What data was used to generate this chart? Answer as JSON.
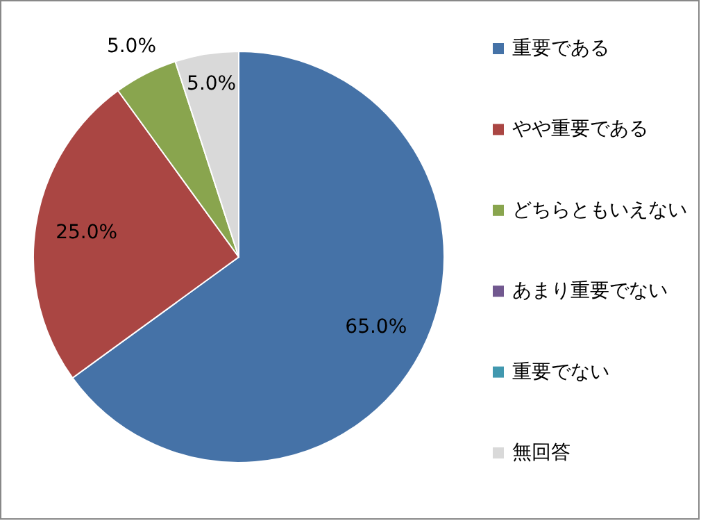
{
  "chart_data": {
    "type": "pie",
    "categories": [
      "重要である",
      "やや重要である",
      "どちらともいえない",
      "あまり重要でない",
      "重要でない",
      "無回答"
    ],
    "values": [
      65,
      25,
      5,
      0,
      0,
      5
    ],
    "colors": [
      "#4572a7",
      "#aa4643",
      "#89a54e",
      "#71588f",
      "#4198af",
      "#d9d9d9"
    ],
    "value_labels": [
      "65.0%",
      "25.0%",
      "5.0%",
      null,
      null,
      "5.0%"
    ],
    "legend": "right"
  }
}
